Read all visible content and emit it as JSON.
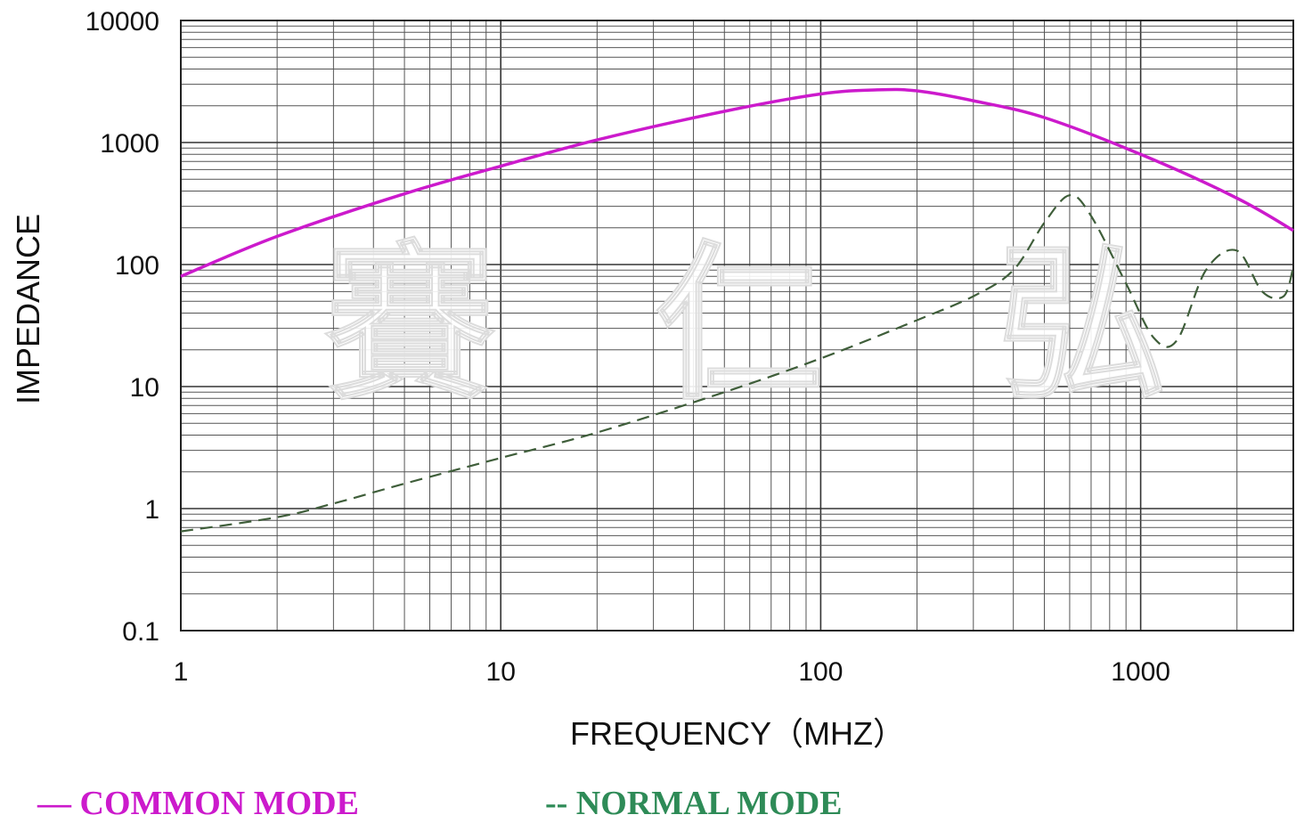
{
  "chart_data": {
    "type": "line",
    "xlabel": "FREQUENCY（MHZ）",
    "ylabel": "IMPEDANCE",
    "x_scale": "log",
    "y_scale": "log",
    "xlim": [
      1,
      3000
    ],
    "ylim": [
      0.1,
      10000
    ],
    "x_ticks": [
      "1",
      "10",
      "100",
      "1000"
    ],
    "y_ticks": [
      "10000",
      "1000",
      "100",
      "10",
      "1",
      "0.1"
    ],
    "grid": true,
    "legend_position": "bottom",
    "watermark": "賽 仁 弘",
    "series": [
      {
        "name": "COMMON MODE",
        "legend_label": "— COMMON MODE",
        "color": "#cc1acc",
        "style": "solid",
        "x": [
          1,
          2,
          5,
          10,
          20,
          50,
          100,
          150,
          200,
          300,
          500,
          1000,
          2000,
          3000
        ],
        "y": [
          80,
          170,
          380,
          640,
          1050,
          1800,
          2500,
          2700,
          2650,
          2200,
          1600,
          800,
          350,
          190
        ]
      },
      {
        "name": "NORMAL MODE",
        "legend_label": "-- NORMAL MODE",
        "color": "#2e8b57",
        "style": "dashed",
        "x": [
          1,
          2,
          3,
          5,
          10,
          20,
          50,
          100,
          200,
          300,
          400,
          500,
          600,
          700,
          900,
          1100,
          1300,
          1600,
          2000,
          2400,
          2800,
          3000
        ],
        "y": [
          0.65,
          0.85,
          1.1,
          1.6,
          2.6,
          4.2,
          9,
          17,
          35,
          55,
          90,
          220,
          370,
          250,
          70,
          25,
          24,
          90,
          130,
          60,
          55,
          95
        ]
      }
    ]
  }
}
